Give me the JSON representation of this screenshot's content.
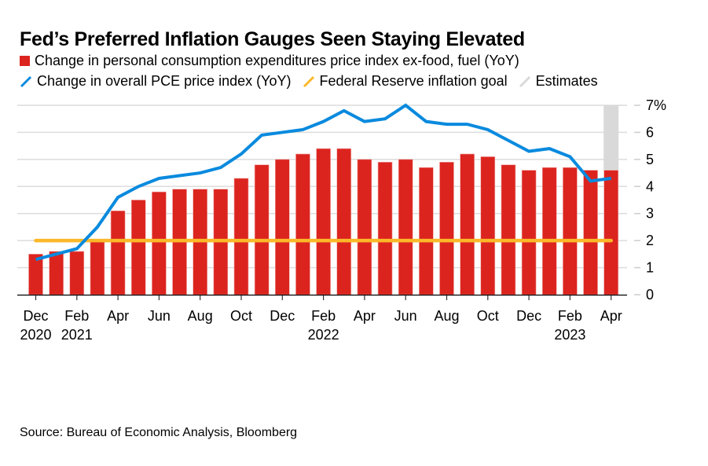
{
  "title": "Fed’s Preferred Inflation Gauges Seen Staying Elevated",
  "legend": [
    {
      "label": "Change in personal consumption expenditures price index ex-food, fuel (YoY)",
      "type": "bar",
      "color": "#dc241f"
    },
    {
      "label": "Change in overall PCE price index (YoY)",
      "type": "line",
      "color": "#0a8ade"
    },
    {
      "label": "Federal Reserve inflation goal",
      "type": "line",
      "color": "#fbb829"
    },
    {
      "label": "Estimates",
      "type": "shade",
      "color": "#d9d9d9"
    }
  ],
  "source": "Source: Bureau of Economic Analysis, Bloomberg",
  "chart_data": {
    "type": "bar",
    "title": "Fed’s Preferred Inflation Gauges Seen Staying Elevated",
    "xlabel": "",
    "ylabel": "",
    "ylim": [
      0,
      7
    ],
    "yticks": [
      "0",
      "1",
      "2",
      "3",
      "4",
      "5",
      "6",
      "7%"
    ],
    "y_axis_side": "right",
    "grid": true,
    "legend_position": "top",
    "categories": [
      "Dec 2020",
      "Jan 2021",
      "Feb 2021",
      "Mar 2021",
      "Apr 2021",
      "May 2021",
      "Jun 2021",
      "Jul 2021",
      "Aug 2021",
      "Sep 2021",
      "Oct 2021",
      "Nov 2021",
      "Dec 2021",
      "Jan 2022",
      "Feb 2022",
      "Mar 2022",
      "Apr 2022",
      "May 2022",
      "Jun 2022",
      "Jul 2022",
      "Aug 2022",
      "Sep 2022",
      "Oct 2022",
      "Nov 2022",
      "Dec 2022",
      "Jan 2023",
      "Feb 2023",
      "Mar 2023",
      "Apr 2023"
    ],
    "xticks": [
      {
        "index": 0,
        "label": "Dec",
        "year": "2020"
      },
      {
        "index": 2,
        "label": "Feb",
        "year": "2021"
      },
      {
        "index": 4,
        "label": "Apr",
        "year": ""
      },
      {
        "index": 6,
        "label": "Jun",
        "year": ""
      },
      {
        "index": 8,
        "label": "Aug",
        "year": ""
      },
      {
        "index": 10,
        "label": "Oct",
        "year": ""
      },
      {
        "index": 12,
        "label": "Dec",
        "year": ""
      },
      {
        "index": 14,
        "label": "Feb",
        "year": "2022"
      },
      {
        "index": 16,
        "label": "Apr",
        "year": ""
      },
      {
        "index": 18,
        "label": "Jun",
        "year": ""
      },
      {
        "index": 20,
        "label": "Aug",
        "year": ""
      },
      {
        "index": 22,
        "label": "Oct",
        "year": ""
      },
      {
        "index": 24,
        "label": "Dec",
        "year": ""
      },
      {
        "index": 26,
        "label": "Feb",
        "year": "2023"
      },
      {
        "index": 28,
        "label": "Apr",
        "year": ""
      }
    ],
    "series": [
      {
        "name": "Change in personal consumption expenditures price index ex-food, fuel (YoY)",
        "type": "bar",
        "color": "#dc241f",
        "values": [
          1.5,
          1.6,
          1.6,
          2.0,
          3.1,
          3.5,
          3.8,
          3.9,
          3.9,
          3.9,
          4.3,
          4.8,
          5.0,
          5.2,
          5.4,
          5.4,
          5.0,
          4.9,
          5.0,
          4.7,
          4.9,
          5.2,
          5.1,
          4.8,
          4.6,
          4.7,
          4.7,
          4.6,
          4.6
        ]
      },
      {
        "name": "Change in overall PCE price index (YoY)",
        "type": "line",
        "color": "#0a8ade",
        "values": [
          1.3,
          1.5,
          1.7,
          2.5,
          3.6,
          4.0,
          4.3,
          4.4,
          4.5,
          4.7,
          5.2,
          5.9,
          6.0,
          6.1,
          6.4,
          6.8,
          6.4,
          6.5,
          7.0,
          6.4,
          6.3,
          6.3,
          6.1,
          5.7,
          5.3,
          5.4,
          5.1,
          4.2,
          4.3
        ]
      },
      {
        "name": "Federal Reserve inflation goal",
        "type": "line",
        "color": "#fbb829",
        "values": [
          2,
          2,
          2,
          2,
          2,
          2,
          2,
          2,
          2,
          2,
          2,
          2,
          2,
          2,
          2,
          2,
          2,
          2,
          2,
          2,
          2,
          2,
          2,
          2,
          2,
          2,
          2,
          2,
          2
        ]
      }
    ],
    "estimates": {
      "label": "Estimates",
      "start_index": 28,
      "end_index": 28,
      "color": "#d9d9d9"
    }
  }
}
